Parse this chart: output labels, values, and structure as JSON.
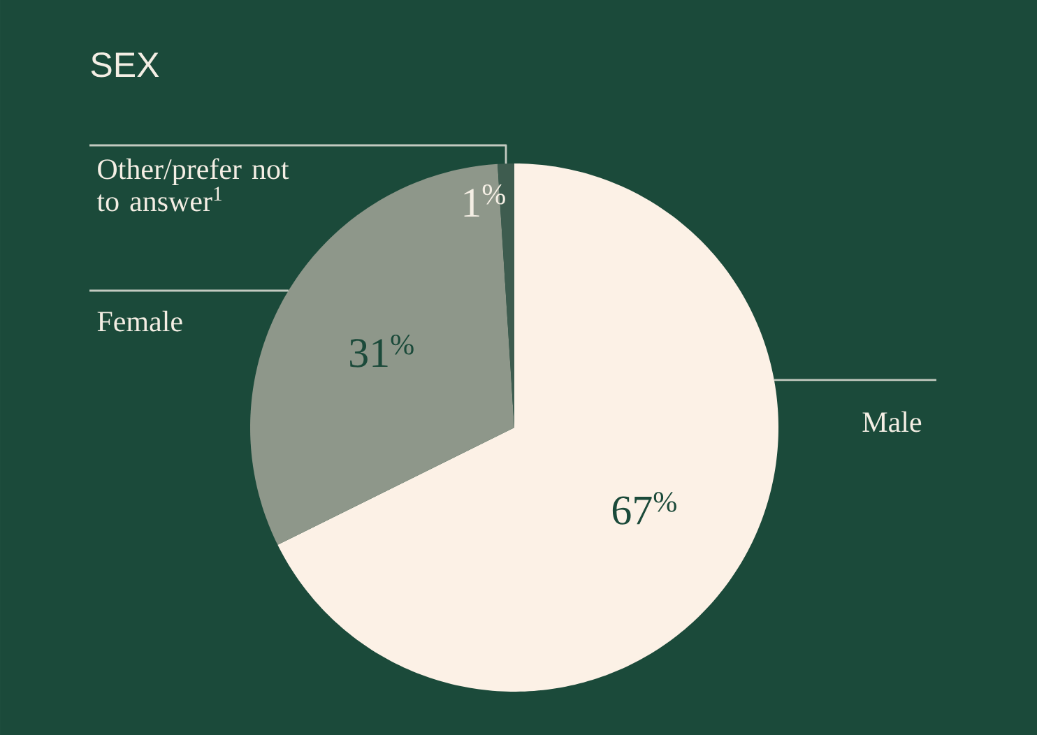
{
  "chart_data": {
    "type": "pie",
    "title": "SEX",
    "categories": [
      "Male",
      "Female",
      "Other/prefer not to answer$^{1}$"
    ],
    "values": [
      67,
      31,
      1
    ],
    "colors": [
      "#fcf1e6",
      "#8e978a",
      "#3e5c4f"
    ],
    "value_labels": [
      "67$^{%}$",
      "31$^{%}$",
      "1$^{%}$"
    ]
  }
}
